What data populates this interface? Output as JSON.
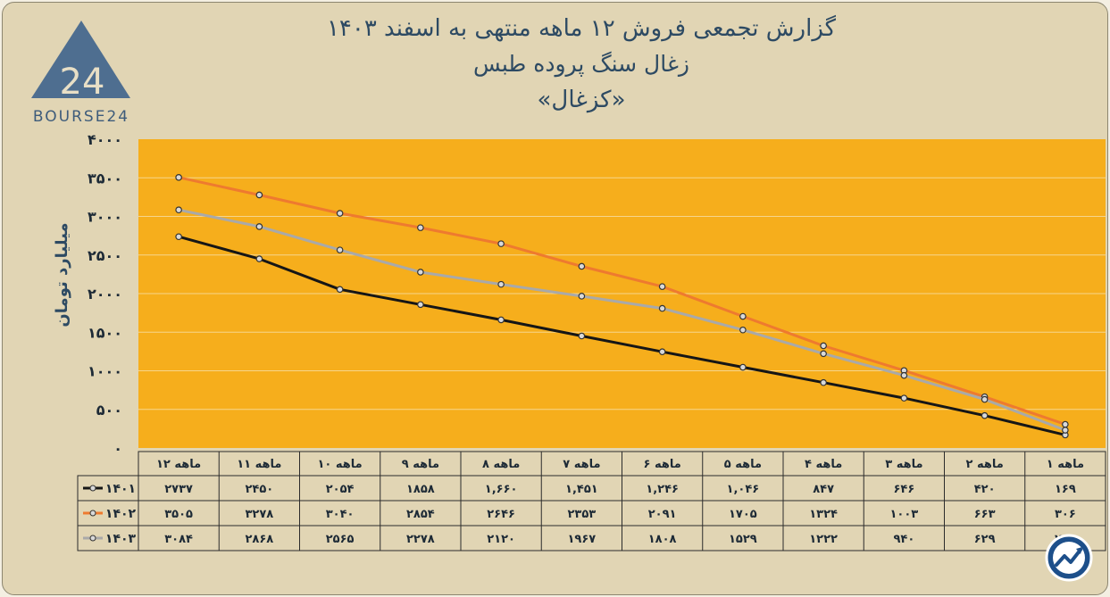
{
  "logo": {
    "text": "BOURSE24",
    "mark": "24"
  },
  "colors": {
    "plot_bg": "#f6ae1c",
    "series_1401": "#161616",
    "series_1402": "#ee7a2f",
    "series_1403": "#a9a9a9",
    "title": "#2d4a63",
    "logo": "#4e6e90"
  },
  "corner_icon": "trend-chart-icon",
  "chart_data": {
    "type": "line",
    "title": "گزارش تجمعی فروش ۱۲ ماهه منتهی به اسفند ۱۴۰۳",
    "subtitle": "زغال سنگ پروده طبس",
    "subtitle2": "«کزغال»",
    "ylabel": "میلیارد تومان",
    "xlabel": "",
    "ylim": [
      0,
      4000
    ],
    "yticks": [
      0,
      500,
      1000,
      1500,
      2000,
      2500,
      3000,
      3500,
      4000
    ],
    "ytick_labels": [
      "۰",
      "۵۰۰",
      "۱۰۰۰",
      "۱۵۰۰",
      "۲۰۰۰",
      "۲۵۰۰",
      "۳۰۰۰",
      "۳۵۰۰",
      "۴۰۰۰"
    ],
    "grid": true,
    "legend": "table-left",
    "categories": [
      "۱ ماهه",
      "۲ ماهه",
      "۳ ماهه",
      "۴ ماهه",
      "۵ ماهه",
      "۶ ماهه",
      "۷ ماهه",
      "۸ ماهه",
      "۹ ماهه",
      "۱۰ ماهه",
      "۱۱ ماهه",
      "۱۲ ماهه"
    ],
    "series": [
      {
        "name": "۱۴۰۱",
        "color": "#161616",
        "values": [
          169,
          420,
          646,
          847,
          1046,
          1246,
          1451,
          1660,
          1858,
          2054,
          2450,
          2737
        ],
        "labels": [
          "۱۶۹",
          "۴۲۰",
          "۶۴۶",
          "۸۴۷",
          "۱,۰۴۶",
          "۱,۲۴۶",
          "۱,۴۵۱",
          "۱,۶۶۰",
          "۱۸۵۸",
          "۲۰۵۴",
          "۲۴۵۰",
          "۲۷۳۷"
        ]
      },
      {
        "name": "۱۴۰۲",
        "color": "#ee7a2f",
        "values": [
          306,
          663,
          1003,
          1324,
          1705,
          2091,
          2353,
          2646,
          2854,
          3040,
          3278,
          3505
        ],
        "labels": [
          "۳۰۶",
          "۶۶۳",
          "۱۰۰۳",
          "۱۳۲۴",
          "۱۷۰۵",
          "۲۰۹۱",
          "۲۳۵۳",
          "۲۶۴۶",
          "۲۸۵۴",
          "۳۰۴۰",
          "۳۲۷۸",
          "۳۵۰۵"
        ]
      },
      {
        "name": "۱۴۰۳",
        "color": "#a9a9a9",
        "values": [
          231,
          629,
          940,
          1222,
          1529,
          1808,
          1967,
          2120,
          2278,
          2565,
          2868,
          3084
        ],
        "labels": [
          "۲۳۱",
          "۶۲۹",
          "۹۴۰",
          "۱۲۲۲",
          "۱۵۲۹",
          "۱۸۰۸",
          "۱۹۶۷",
          "۲۱۲۰",
          "۲۲۷۸",
          "۲۵۶۵",
          "۲۸۶۸",
          "۳۰۸۴"
        ]
      }
    ]
  }
}
